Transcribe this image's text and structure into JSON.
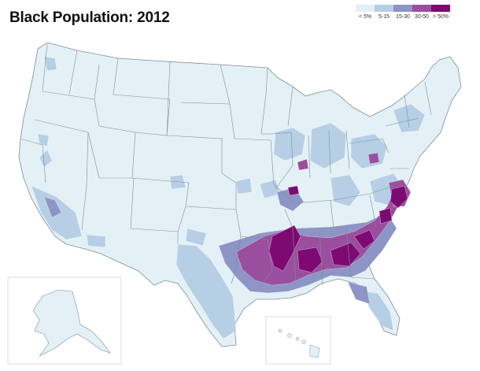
{
  "title": "Black Population: 2012",
  "legend": {
    "items": [
      {
        "label": "< 5%",
        "color": "#e3f1f6"
      },
      {
        "label": "5-15",
        "color": "#b7cfe4"
      },
      {
        "label": "15-30",
        "color": "#8d95c6"
      },
      {
        "label": "30-50",
        "color": "#9a4f9e"
      },
      {
        "label": "> 50%",
        "color": "#7d0a72"
      }
    ]
  },
  "colors": {
    "base_fill": "#e3f1f6",
    "border": "#7f8e98",
    "inset_frame": "#cfd6db"
  },
  "insets": [
    "alaska",
    "hawaii"
  ]
}
